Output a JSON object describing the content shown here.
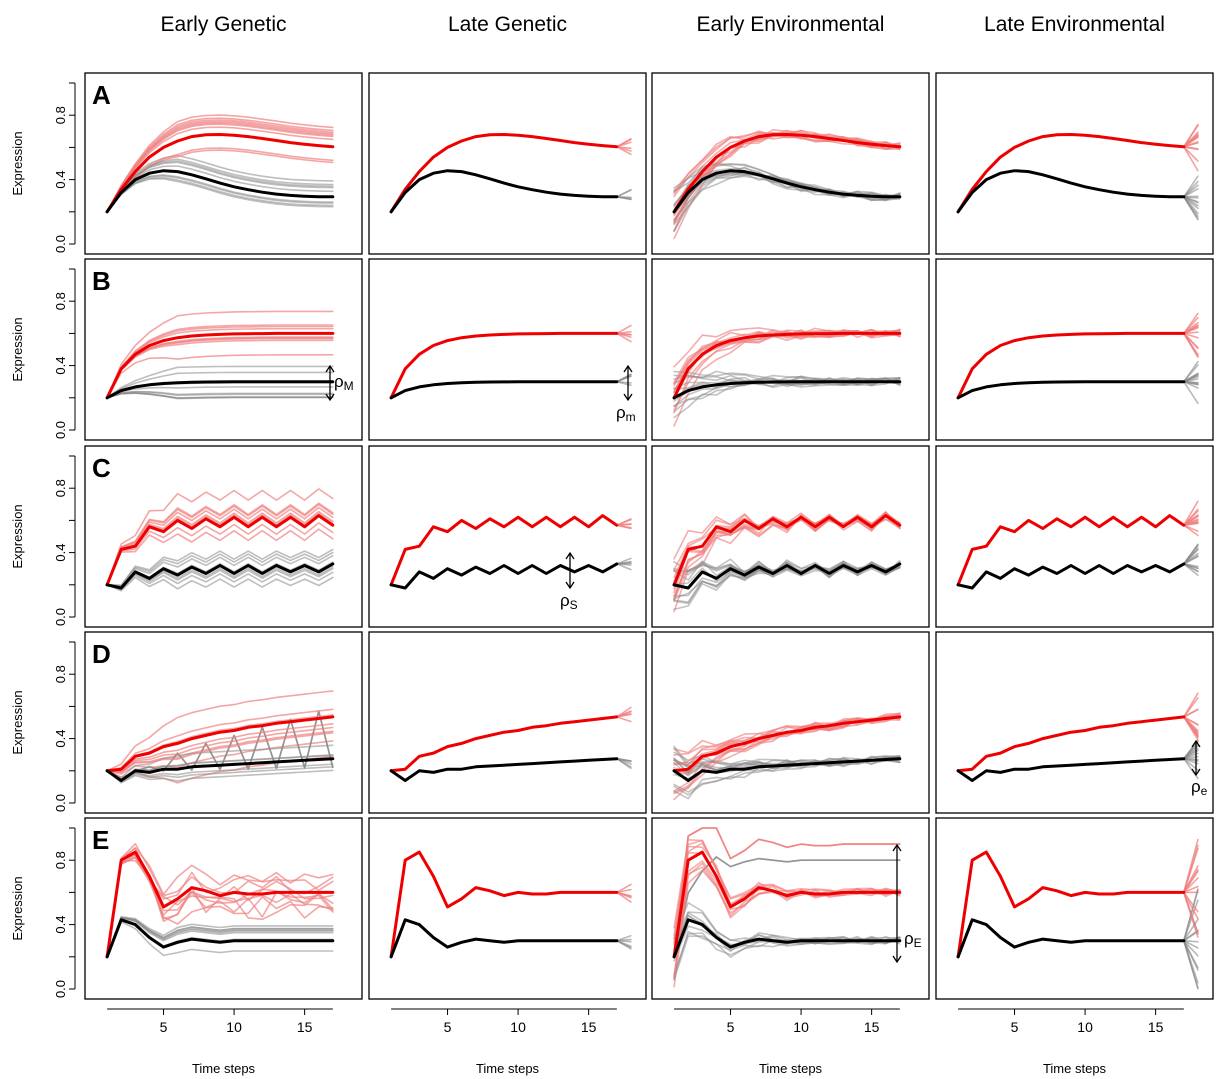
{
  "chart_data": {
    "type": "line",
    "column_titles": [
      "Early Genetic",
      "Late Genetic",
      "Early Environmental",
      "Late Environmental"
    ],
    "row_labels": [
      "A",
      "B",
      "C",
      "D",
      "E"
    ],
    "ylabel": "Expression",
    "xlabel": "Time steps",
    "xlim": [
      0,
      18.5
    ],
    "ylim": [
      0,
      1
    ],
    "xticks": [
      5,
      10,
      15
    ],
    "yticks": [
      0.0,
      0.4,
      0.8
    ],
    "ytick_labels": [
      "0.0",
      "0.4",
      "0.8"
    ],
    "xtick_labels": [
      "5",
      "10",
      "15"
    ],
    "grid": false,
    "legend": "none",
    "colors": {
      "high": "#ee0000",
      "low": "#000000",
      "high_faint": "#f08080",
      "low_faint": "#888888"
    },
    "annotations": [
      {
        "row": 1,
        "col": 0,
        "label": "ρ",
        "sub": "M"
      },
      {
        "row": 1,
        "col": 1,
        "label": "ρ",
        "sub": "m"
      },
      {
        "row": 2,
        "col": 1,
        "label": "ρ",
        "sub": "S"
      },
      {
        "row": 3,
        "col": 3,
        "label": "ρ",
        "sub": "e"
      },
      {
        "row": 4,
        "col": 2,
        "label": "ρ",
        "sub": "E"
      }
    ],
    "rows": [
      {
        "name": "A",
        "x": [
          1,
          2,
          3,
          4,
          5,
          6,
          7,
          8,
          9,
          10,
          11,
          12,
          13,
          14,
          15,
          16,
          17
        ],
        "high": [
          0.2,
          0.34,
          0.45,
          0.54,
          0.6,
          0.64,
          0.667,
          0.678,
          0.68,
          0.676,
          0.667,
          0.655,
          0.643,
          0.63,
          0.62,
          0.611,
          0.604
        ],
        "low": [
          0.2,
          0.32,
          0.4,
          0.44,
          0.455,
          0.45,
          0.43,
          0.405,
          0.378,
          0.355,
          0.337,
          0.322,
          0.31,
          0.302,
          0.297,
          0.294,
          0.293
        ]
      },
      {
        "name": "B",
        "x": [
          1,
          2,
          3,
          4,
          5,
          6,
          7,
          8,
          9,
          10,
          11,
          12,
          13,
          14,
          15,
          16,
          17
        ],
        "high": [
          0.2,
          0.38,
          0.47,
          0.525,
          0.555,
          0.573,
          0.584,
          0.59,
          0.594,
          0.597,
          0.598,
          0.599,
          0.6,
          0.6,
          0.6,
          0.6,
          0.6
        ],
        "low": [
          0.2,
          0.245,
          0.268,
          0.281,
          0.289,
          0.294,
          0.296,
          0.298,
          0.299,
          0.3,
          0.3,
          0.3,
          0.3,
          0.3,
          0.3,
          0.3,
          0.3
        ]
      },
      {
        "name": "C",
        "x": [
          1,
          2,
          3,
          4,
          5,
          6,
          7,
          8,
          9,
          10,
          11,
          12,
          13,
          14,
          15,
          16,
          17
        ],
        "high": [
          0.2,
          0.42,
          0.44,
          0.56,
          0.53,
          0.6,
          0.55,
          0.61,
          0.56,
          0.62,
          0.56,
          0.62,
          0.56,
          0.62,
          0.56,
          0.63,
          0.57
        ],
        "low": [
          0.2,
          0.18,
          0.28,
          0.24,
          0.3,
          0.26,
          0.31,
          0.27,
          0.32,
          0.27,
          0.32,
          0.27,
          0.32,
          0.28,
          0.32,
          0.28,
          0.33
        ]
      },
      {
        "name": "D",
        "x": [
          1,
          2,
          3,
          4,
          5,
          6,
          7,
          8,
          9,
          10,
          11,
          12,
          13,
          14,
          15,
          16,
          17
        ],
        "high": [
          0.2,
          0.21,
          0.29,
          0.31,
          0.35,
          0.37,
          0.4,
          0.42,
          0.44,
          0.45,
          0.47,
          0.48,
          0.495,
          0.505,
          0.515,
          0.525,
          0.535
        ],
        "low": [
          0.2,
          0.14,
          0.2,
          0.19,
          0.21,
          0.21,
          0.225,
          0.23,
          0.235,
          0.24,
          0.245,
          0.25,
          0.255,
          0.26,
          0.265,
          0.27,
          0.275
        ]
      },
      {
        "name": "E",
        "x": [
          1,
          2,
          3,
          4,
          5,
          6,
          7,
          8,
          9,
          10,
          11,
          12,
          13,
          14,
          15,
          16,
          17
        ],
        "high": [
          0.2,
          0.8,
          0.85,
          0.7,
          0.51,
          0.56,
          0.63,
          0.61,
          0.58,
          0.6,
          0.59,
          0.59,
          0.6,
          0.6,
          0.6,
          0.6,
          0.6
        ],
        "low": [
          0.2,
          0.43,
          0.4,
          0.32,
          0.26,
          0.29,
          0.31,
          0.3,
          0.29,
          0.3,
          0.3,
          0.3,
          0.3,
          0.3,
          0.3,
          0.3,
          0.3
        ]
      }
    ]
  }
}
